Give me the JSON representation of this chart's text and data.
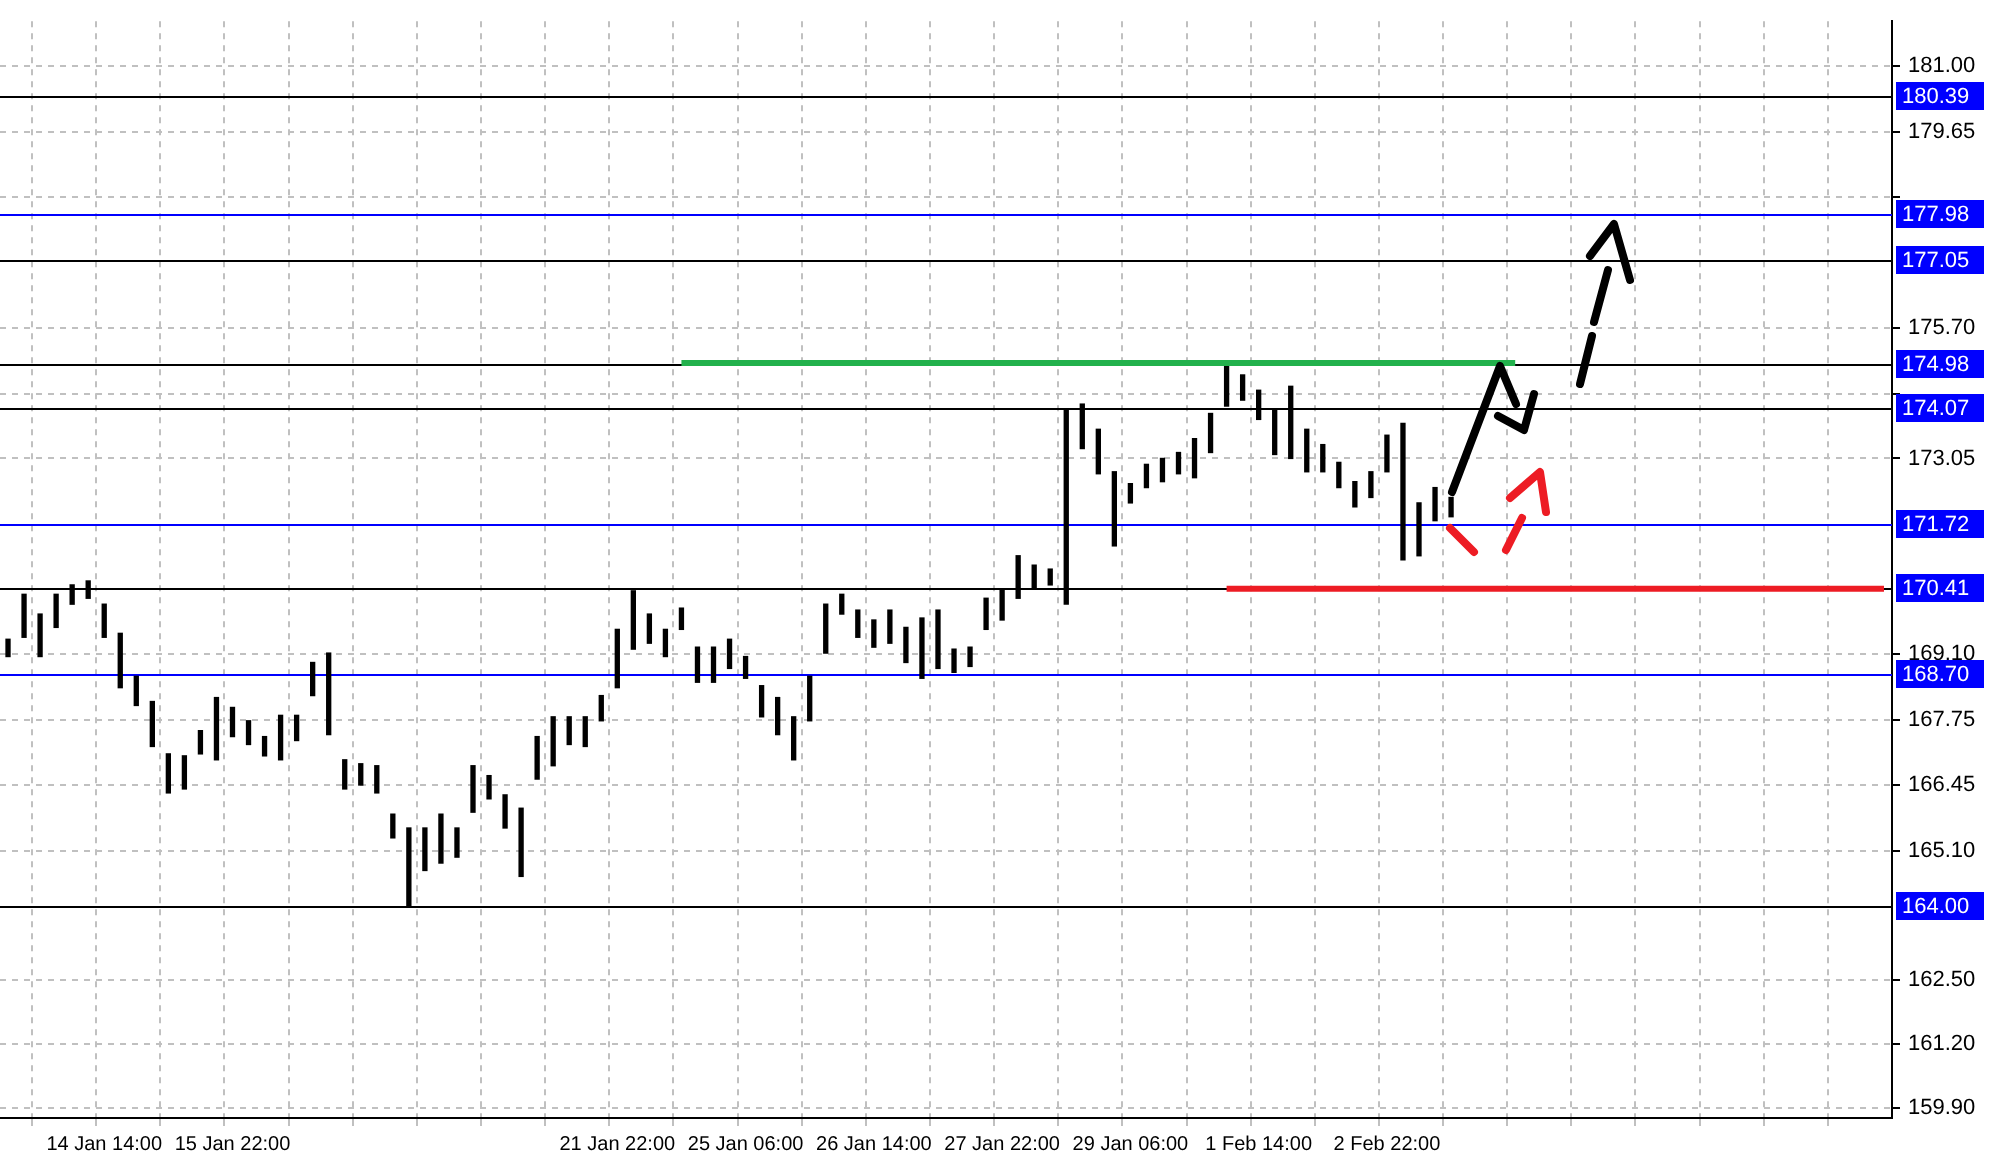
{
  "chart_data": {
    "type": "bar",
    "categories": [
      null,
      null,
      null,
      null,
      null,
      null,
      "14 Jan 14:00",
      null,
      null,
      null,
      null,
      null,
      null,
      null,
      "15 Jan 22:00",
      null,
      null,
      null,
      null,
      null,
      null,
      null,
      null,
      null,
      null,
      null,
      null,
      null,
      null,
      null,
      null,
      null,
      null,
      null,
      null,
      null,
      null,
      null,
      "21 Jan 22:00",
      null,
      null,
      null,
      null,
      null,
      null,
      null,
      "25 Jan 06:00",
      null,
      null,
      null,
      null,
      null,
      null,
      null,
      "26 Jan 14:00",
      null,
      null,
      null,
      null,
      null,
      null,
      null,
      "27 Jan 22:00",
      null,
      null,
      null,
      null,
      null,
      null,
      null,
      "29 Jan 06:00",
      null,
      null,
      null,
      null,
      null,
      null,
      null,
      "1 Feb 14:00",
      null,
      null,
      null,
      null,
      null,
      null,
      null,
      "2 Feb 22:00",
      null,
      null,
      null,
      null,
      null,
      null,
      null,
      null,
      null,
      null,
      null,
      null,
      null,
      null,
      null,
      null,
      null,
      null,
      null,
      null,
      null,
      null,
      null,
      null,
      null,
      null,
      null,
      null,
      null,
      null,
      null
    ],
    "series": [
      {
        "color": "#000000",
        "values": [
          0.35,
          0.87,
          0.86,
          0.67,
          0.39,
          0.35,
          0.67,
          1.1,
          0.59,
          0.91,
          0.79,
          0.67,
          0.47,
          1.26,
          0.59,
          0.48,
          0.39,
          0.9,
          0.51,
          0.67,
          1.65,
          0.59,
          0.43,
          0.55,
          0.48,
          1.57,
          0.86,
          0.99,
          0.59,
          0.94,
          0.47,
          0.67,
          1.38,
          0.86,
          0.99,
          0.56,
          0.6,
          0.51,
          1.18,
          1.18,
          0.59,
          0.55,
          0.43,
          0.71,
          0.71,
          0.59,
          0.44,
          0.63,
          0.75,
          0.87,
          0.9,
          0.99,
          0.4,
          0.55,
          0.55,
          0.67,
          0.71,
          1.22,
          1.18,
          0.47,
          0.39,
          0.63,
          0.63,
          0.86,
          0.48,
          0.32,
          3.94,
          0.9,
          0.9,
          1.5,
          0.39,
          0.47,
          0.47,
          0.43,
          0.79,
          0.79,
          0.83,
          0.51,
          0.59,
          0.91,
          1.46,
          0.86,
          0.55,
          0.51,
          0.51,
          0.52,
          0.74,
          2.76,
          1.07,
          0.67,
          0.39,
          null,
          null,
          null,
          null,
          null,
          null,
          null,
          null,
          null,
          null,
          null,
          null,
          null,
          null,
          null,
          null,
          null,
          null,
          null,
          null,
          null,
          null,
          null,
          null,
          null,
          null,
          null
        ],
        "base": [
          169.04,
          169.43,
          169.04,
          169.63,
          170.1,
          170.22,
          169.43,
          168.41,
          168.05,
          167.22,
          166.28,
          166.36,
          167.07,
          166.95,
          167.42,
          167.26,
          167.03,
          166.95,
          167.34,
          168.25,
          167.46,
          166.36,
          166.44,
          166.28,
          165.37,
          164.0,
          164.71,
          164.86,
          164.98,
          165.89,
          166.16,
          165.57,
          164.59,
          166.56,
          166.83,
          167.26,
          167.22,
          167.74,
          168.41,
          169.19,
          169.31,
          169.04,
          169.59,
          168.52,
          168.52,
          168.8,
          168.6,
          167.82,
          167.46,
          166.95,
          167.74,
          169.11,
          169.9,
          169.43,
          169.23,
          169.31,
          168.92,
          168.6,
          168.8,
          168.72,
          168.84,
          169.59,
          169.78,
          170.22,
          170.41,
          170.49,
          170.1,
          173.25,
          172.74,
          171.28,
          172.15,
          172.46,
          172.58,
          172.74,
          172.66,
          173.17,
          174.11,
          174.23,
          173.84,
          173.13,
          173.05,
          172.78,
          172.78,
          172.46,
          172.07,
          172.26,
          172.78,
          171.0,
          171.08,
          171.79,
          171.87,
          null,
          null,
          null,
          null,
          null,
          null,
          null,
          null,
          null,
          null,
          null,
          null,
          null,
          null,
          null,
          null,
          null,
          null,
          null,
          null,
          null,
          null,
          null,
          null,
          null,
          null,
          null
        ]
      },
      {
        "type": "line",
        "color": "#22b14c",
        "values": [
          null,
          null,
          null,
          null,
          null,
          null,
          null,
          null,
          null,
          null,
          null,
          null,
          null,
          null,
          null,
          null,
          null,
          null,
          null,
          null,
          null,
          null,
          null,
          null,
          null,
          null,
          null,
          null,
          null,
          null,
          null,
          null,
          null,
          null,
          null,
          null,
          null,
          null,
          null,
          null,
          null,
          null,
          174.98,
          174.98,
          174.98,
          174.98,
          174.98,
          174.98,
          174.98,
          174.98,
          174.98,
          174.98,
          174.98,
          174.98,
          174.98,
          174.98,
          174.98,
          174.98,
          174.98,
          174.98,
          174.98,
          174.98,
          174.98,
          174.98,
          174.98,
          174.98,
          174.98,
          174.98,
          174.98,
          174.98,
          174.98,
          174.98,
          174.98,
          174.98,
          174.98,
          174.98,
          174.98,
          174.98,
          174.98,
          174.98,
          174.98,
          174.98,
          174.98,
          174.98,
          174.98,
          174.98,
          174.98,
          174.98,
          174.98,
          174.98,
          174.98,
          174.98,
          174.98,
          174.98,
          174.98,
          null,
          null,
          null,
          null,
          null,
          null,
          null,
          null,
          null,
          null,
          null,
          null,
          null,
          null,
          null,
          null,
          null,
          null,
          null,
          null,
          null,
          null,
          null
        ]
      },
      {
        "type": "line",
        "color": "#ed1c24",
        "values": [
          null,
          null,
          null,
          null,
          null,
          null,
          null,
          null,
          null,
          null,
          null,
          null,
          null,
          null,
          null,
          null,
          null,
          null,
          null,
          null,
          null,
          null,
          null,
          null,
          null,
          null,
          null,
          null,
          null,
          null,
          null,
          null,
          null,
          null,
          null,
          null,
          null,
          null,
          null,
          null,
          null,
          null,
          null,
          null,
          null,
          null,
          null,
          null,
          null,
          null,
          null,
          null,
          null,
          null,
          null,
          null,
          null,
          null,
          null,
          null,
          null,
          null,
          null,
          null,
          null,
          null,
          null,
          null,
          null,
          null,
          null,
          null,
          null,
          null,
          null,
          null,
          170.41,
          170.41,
          170.41,
          170.41,
          170.41,
          170.41,
          170.41,
          170.41,
          170.41,
          170.41,
          170.41,
          170.41,
          170.41,
          170.41,
          170.41,
          170.41,
          170.41,
          170.41,
          170.41,
          170.41,
          170.41,
          170.41,
          170.41,
          170.41,
          170.41,
          170.41,
          170.41,
          170.41,
          170.41,
          170.41,
          170.41,
          170.41,
          170.41,
          170.41,
          170.41,
          170.41,
          170.41,
          170.41,
          170.41,
          170.41,
          170.41,
          170.41
        ]
      }
    ],
    "ylim": [
      159.7,
      181.9
    ],
    "yticks": [
      {
        "value": 181,
        "label": "181.00"
      },
      {
        "value": 179.65,
        "label": "179.65"
      },
      {
        "value": 178.35,
        "label": null
      },
      {
        "value": 175.7,
        "label": "175.70"
      },
      {
        "value": 174.35,
        "label": null
      },
      {
        "value": 173.05,
        "label": "173.05"
      },
      {
        "value": 169.1,
        "label": "169.10"
      },
      {
        "value": 167.75,
        "label": "167.75"
      },
      {
        "value": 166.45,
        "label": "166.45"
      },
      {
        "value": 165.1,
        "label": "165.10"
      },
      {
        "value": 162.5,
        "label": "162.50"
      },
      {
        "value": 161.2,
        "label": "161.20"
      },
      {
        "value": 159.9,
        "label": "159.90"
      }
    ],
    "ref_lines": [
      {
        "axis": "y",
        "value": 180.39,
        "label": "180.39",
        "color": "#000000"
      },
      {
        "axis": "y",
        "value": 177.98,
        "label": "177.98",
        "color": "#0000ff"
      },
      {
        "axis": "y",
        "value": 177.05,
        "label": "177.05",
        "color": "#000000"
      },
      {
        "axis": "y",
        "value": 174.98,
        "label": "174.98",
        "color": "#000000"
      },
      {
        "axis": "y",
        "value": 174.07,
        "label": "174.07",
        "color": "#000000"
      },
      {
        "axis": "y",
        "value": 171.72,
        "label": "171.72",
        "color": "#0000ff"
      },
      {
        "axis": "y",
        "value": 170.41,
        "label": "170.41",
        "color": "#000000"
      },
      {
        "axis": "y",
        "value": 168.7,
        "label": "168.70",
        "color": "#0000ff"
      },
      {
        "axis": "y",
        "value": 164.0,
        "label": "164.00",
        "color": "#000000"
      }
    ],
    "grid": true
  }
}
